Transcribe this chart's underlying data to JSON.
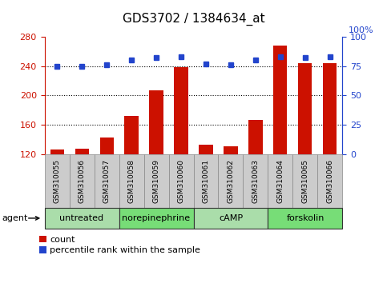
{
  "title": "GDS3702 / 1384634_at",
  "samples": [
    "GSM310055",
    "GSM310056",
    "GSM310057",
    "GSM310058",
    "GSM310059",
    "GSM310060",
    "GSM310061",
    "GSM310062",
    "GSM310063",
    "GSM310064",
    "GSM310065",
    "GSM310066"
  ],
  "counts": [
    127,
    128,
    143,
    172,
    207,
    239,
    133,
    131,
    167,
    268,
    244,
    244
  ],
  "percentile_ranks": [
    75,
    75,
    76,
    80,
    82,
    83,
    77,
    76,
    80,
    83,
    82,
    83
  ],
  "groups": [
    {
      "label": "untreated",
      "start": 0,
      "end": 3,
      "color": "#aaddaa"
    },
    {
      "label": "norepinephrine",
      "start": 3,
      "end": 6,
      "color": "#77dd77"
    },
    {
      "label": "cAMP",
      "start": 6,
      "end": 9,
      "color": "#aaddaa"
    },
    {
      "label": "forskolin",
      "start": 9,
      "end": 12,
      "color": "#77dd77"
    }
  ],
  "ylim_left": [
    120,
    280
  ],
  "ylim_right": [
    0,
    100
  ],
  "yticks_left": [
    120,
    160,
    200,
    240,
    280
  ],
  "yticks_right": [
    0,
    25,
    50,
    75,
    100
  ],
  "bar_color": "#cc1100",
  "dot_color": "#2244cc",
  "background_color": "#ffffff",
  "sample_box_color": "#cccccc",
  "agent_label": "agent",
  "legend_count": "count",
  "legend_percentile": "percentile rank within the sample",
  "title_fontsize": 11,
  "tick_fontsize": 8,
  "label_fontsize": 6.5,
  "group_fontsize": 8,
  "legend_fontsize": 8
}
